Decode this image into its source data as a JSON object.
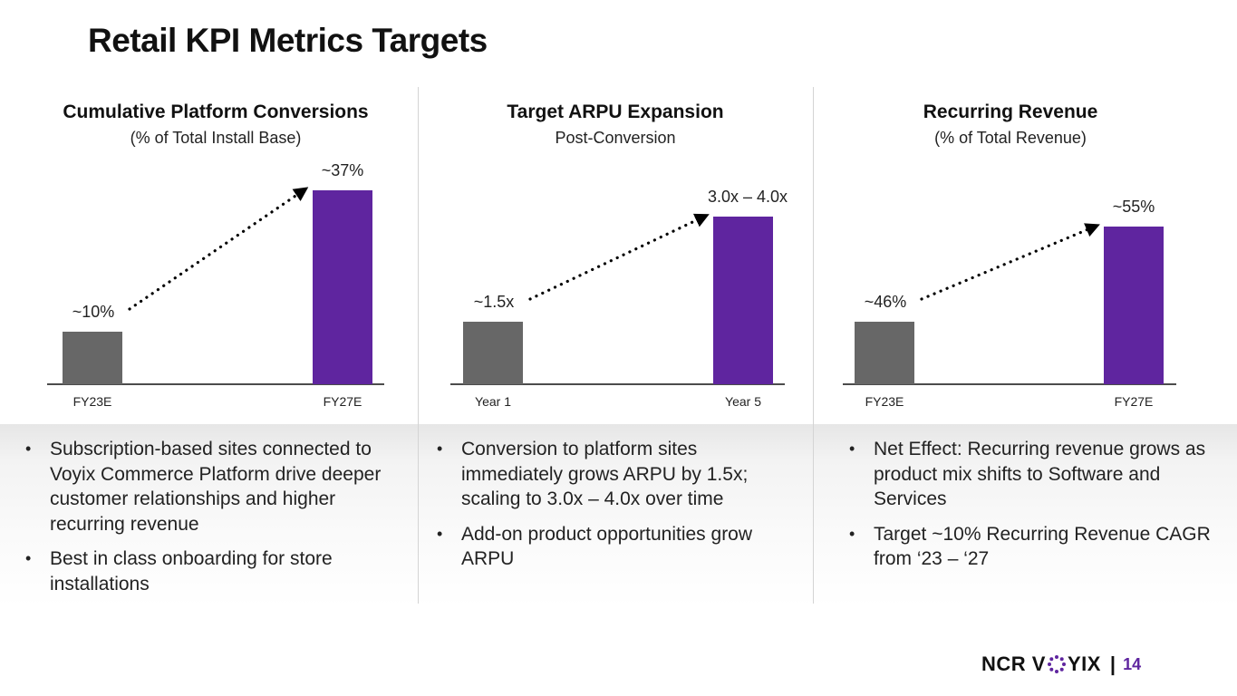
{
  "page": {
    "title": "Retail KPI Metrics Targets",
    "page_number": "14",
    "logo": {
      "left": "NCR V",
      "right": "YIX",
      "mark_icon": "voyix-dot-ring-icon"
    },
    "separator": "|"
  },
  "colors": {
    "bar_base": "#676767",
    "bar_target": "#5f259f",
    "accent": "#5f259f"
  },
  "chart_data": [
    {
      "type": "bar",
      "title": "Cumulative Platform Conversions",
      "subtitle": "(% of Total Install Base)",
      "categories": [
        "FY23E",
        "FY27E"
      ],
      "values": [
        10,
        37
      ],
      "data_labels": [
        "~10%",
        "~37%"
      ],
      "xlabel": "",
      "ylabel": "",
      "ylim": [
        0,
        40
      ],
      "grid": false,
      "annotation": "dotted arrow from first to second bar"
    },
    {
      "type": "bar",
      "title": "Target ARPU Expansion",
      "subtitle": "Post-Conversion",
      "categories": [
        "Year 1",
        "Year 5"
      ],
      "values": [
        1.5,
        4.0
      ],
      "data_labels": [
        "~1.5x",
        "3.0x – 4.0x"
      ],
      "xlabel": "",
      "ylabel": "",
      "ylim": [
        0,
        5.5
      ],
      "grid": false,
      "annotation": "dotted arrow from first to second bar"
    },
    {
      "type": "bar",
      "title": "Recurring Revenue",
      "subtitle": "(% of Total Revenue)",
      "categories": [
        "FY23E",
        "FY27E"
      ],
      "values": [
        46,
        55
      ],
      "data_labels": [
        "~46%",
        "~55%"
      ],
      "xlabel": "",
      "ylabel": "",
      "ylim": [
        0,
        80
      ],
      "grid": false,
      "annotation": "dotted arrow from first to second bar"
    }
  ],
  "bullets": [
    [
      "Subscription-based sites connected to Voyix Commerce Platform drive deeper customer relationships and higher recurring revenue",
      "Best in class onboarding for store installations"
    ],
    [
      "Conversion to platform sites immediately grows ARPU by 1.5x; scaling to 3.0x – 4.0x over time",
      "Add-on product opportunities grow ARPU"
    ],
    [
      "Net Effect: Recurring revenue grows as product mix shifts to Software and Services",
      "Target ~10% Recurring Revenue CAGR from ‘23 – ‘27"
    ]
  ]
}
